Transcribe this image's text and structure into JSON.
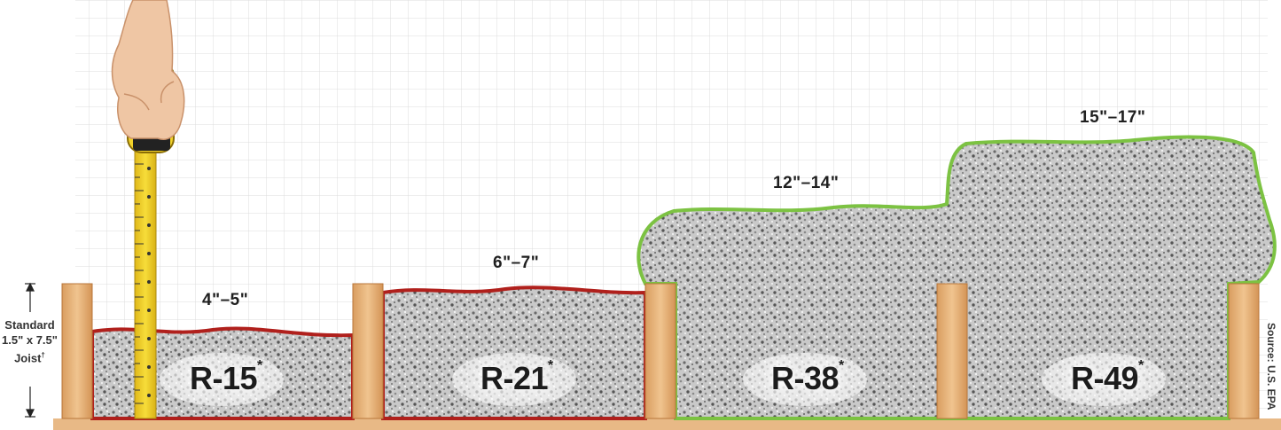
{
  "joist_label": {
    "line1": "Standard",
    "line2": "1.5\" x 7.5\"",
    "line3": "Joist"
  },
  "joist_label_mark": "†",
  "source_label": "Source: U.S. EPA",
  "asterisk": "*",
  "levels": [
    {
      "r_value": "R-15",
      "depth": "4\"–5\"",
      "outline_color": "#b0201c"
    },
    {
      "r_value": "R-21",
      "depth": "6\"–7\"",
      "outline_color": "#b0201c"
    },
    {
      "r_value": "R-38",
      "depth": "12\"–14\"",
      "outline_color": "#7cc242"
    },
    {
      "r_value": "R-49",
      "depth": "15\"–17\"",
      "outline_color": "#7cc242"
    }
  ],
  "colors": {
    "joist": "#e6b27a",
    "floor": "#e8b986",
    "grid": "#dcdcdc",
    "tape": "#f2d32a",
    "red_outline": "#b0201c",
    "green_outline": "#7cc242"
  },
  "icons": [
    "hand-icon",
    "tape-measure-icon"
  ]
}
